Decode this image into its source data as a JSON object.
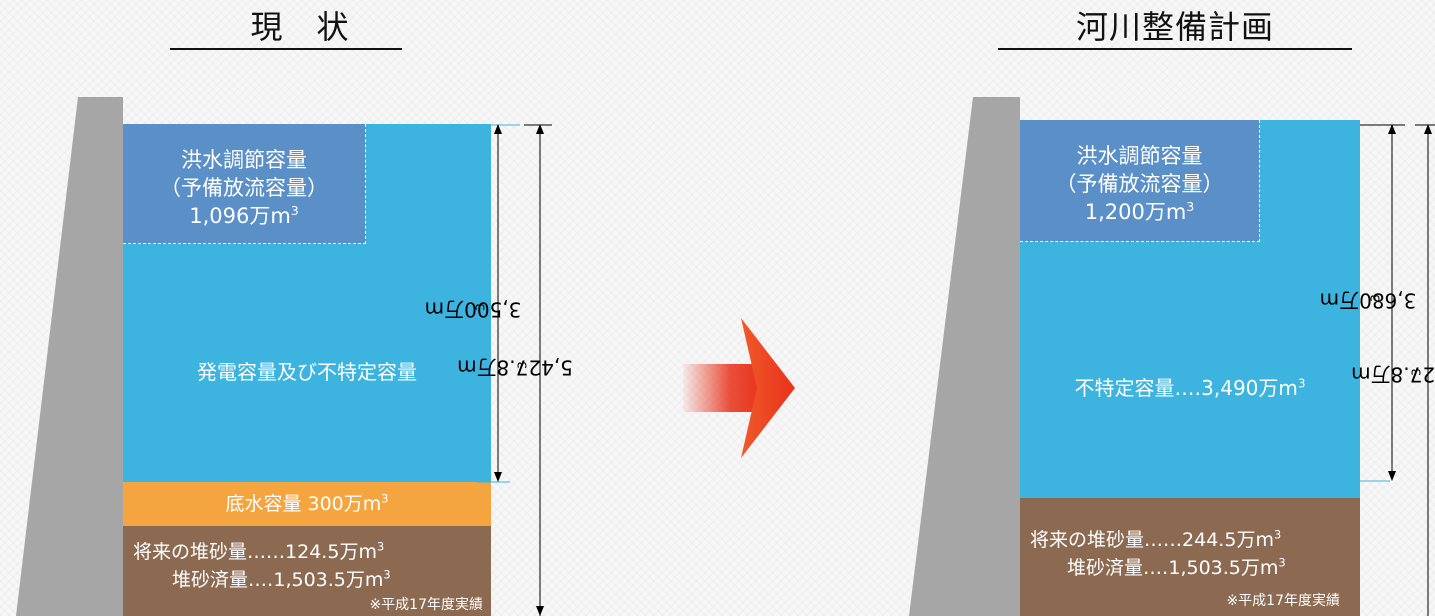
{
  "headings": {
    "current": "現　状",
    "plan": "河川整備計画"
  },
  "current": {
    "flood_title": "洪水調節容量",
    "flood_sub": "（予備放流容量）",
    "flood_value": "1,096万m",
    "flood_unit_sup": "3",
    "main_label": "発電容量及び不特定容量",
    "bottom_label": "底水容量 300万m",
    "bottom_sup": "3",
    "sed_future": "将来の堆砂量‥‥‥124.5万m",
    "sed_future_sup": "3",
    "sed_done": "堆砂済量‥‥1,503.5万m",
    "sed_done_sup": "3",
    "note": "※平成17年度実績",
    "dim_upper": "3,500万m",
    "dim_upper_sup": "3",
    "dim_total": "5,427.8万m",
    "dim_total_sup": "3"
  },
  "plan": {
    "flood_title": "洪水調節容量",
    "flood_sub": "（予備放流容量）",
    "flood_value": "1,200万m",
    "flood_unit_sup": "3",
    "main_label": "不特定容量‥‥3,490万m",
    "main_sup": "3",
    "sed_future": "将来の堆砂量‥‥‥244.5万m",
    "sed_future_sup": "3",
    "sed_done": "堆砂済量‥‥1,503.5万m",
    "sed_done_sup": "3",
    "note": "※平成17年度実績",
    "dim_upper": "3,680万m",
    "dim_upper_sup": "3",
    "dim_total": "5,427.8万m",
    "dim_total_sup": "3"
  },
  "colors": {
    "flood": "#5b8fc7",
    "water": "#3db4e0",
    "dead": "#f5a540",
    "sediment": "#8c6a52",
    "dam": "#a6a6a6",
    "arrow": "#e8321b"
  }
}
